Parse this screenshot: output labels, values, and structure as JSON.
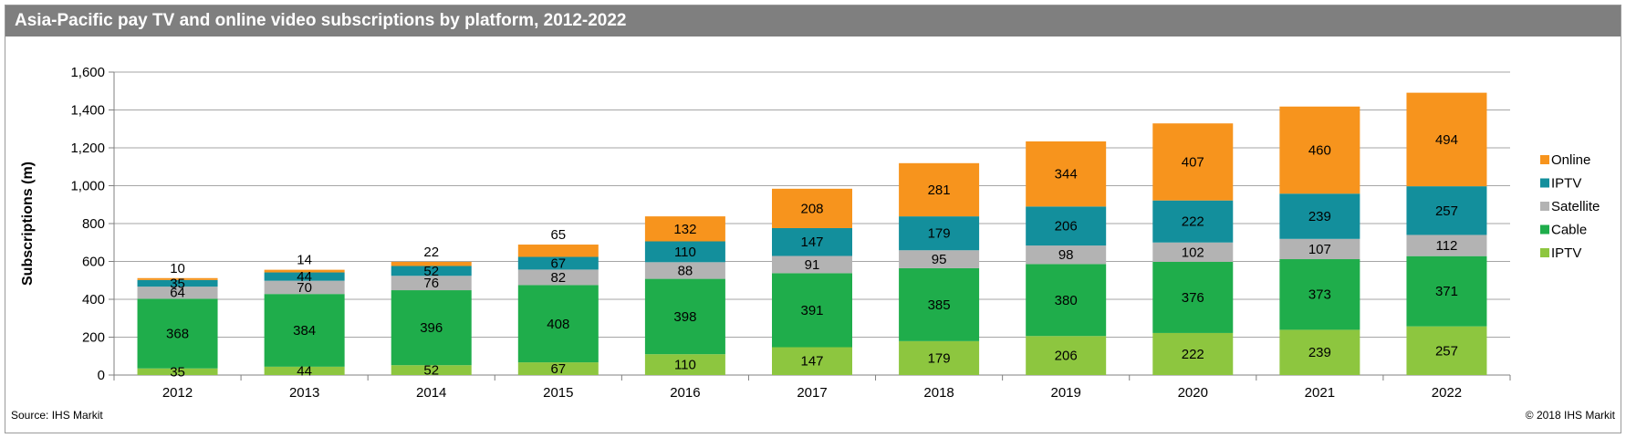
{
  "title": "Asia-Pacific pay TV and online video subscriptions by platform, 2012-2022",
  "source": "Source: IHS Markit",
  "copyright": "© 2018 IHS Markit",
  "colors": {
    "IPTV_base": "#8dc63f",
    "Cable": "#1fad4b",
    "Satellite": "#b3b3b3",
    "IPTV_top": "#138f9c",
    "Online": "#f7941d"
  },
  "chart_data": {
    "type": "bar",
    "stacked": true,
    "title": "Asia-Pacific pay TV and online video subscriptions by platform, 2012-2022",
    "xlabel": "",
    "ylabel": "Subscriptions (m)",
    "ylim": [
      0,
      1600
    ],
    "yticks": [
      0,
      200,
      400,
      600,
      800,
      1000,
      1200,
      1400,
      1600
    ],
    "ytick_labels": [
      "0",
      "200",
      "400",
      "600",
      "800",
      "1,000",
      "1,200",
      "1,400",
      "1,600"
    ],
    "categories": [
      "2012",
      "2013",
      "2014",
      "2015",
      "2016",
      "2017",
      "2018",
      "2019",
      "2020",
      "2021",
      "2022"
    ],
    "series": [
      {
        "name": "IPTV",
        "key": "IPTV_base",
        "values": [
          35,
          44,
          52,
          67,
          110,
          147,
          179,
          206,
          222,
          239,
          257
        ]
      },
      {
        "name": "Cable",
        "key": "Cable",
        "values": [
          368,
          384,
          396,
          408,
          398,
          391,
          385,
          380,
          376,
          373,
          371
        ]
      },
      {
        "name": "Satellite",
        "key": "Satellite",
        "values": [
          64,
          70,
          76,
          82,
          88,
          91,
          95,
          98,
          102,
          107,
          112
        ]
      },
      {
        "name": "IPTV",
        "key": "IPTV_top",
        "values": [
          35,
          44,
          52,
          67,
          110,
          147,
          179,
          206,
          222,
          239,
          257
        ]
      },
      {
        "name": "Online",
        "key": "Online",
        "values": [
          10,
          14,
          22,
          65,
          132,
          208,
          281,
          344,
          407,
          460,
          494
        ]
      }
    ],
    "legend": [
      "Online",
      "IPTV",
      "Satellite",
      "Cable",
      "IPTV"
    ],
    "legend_position": "right",
    "grid": true
  }
}
